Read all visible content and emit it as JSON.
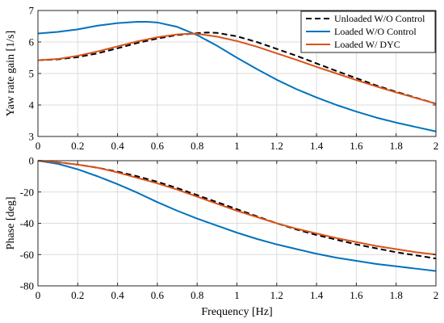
{
  "chart_data": [
    {
      "type": "line",
      "panel": "top",
      "xlabel": "",
      "ylabel": "Yaw rate gain [1/s]",
      "xlim": [
        0,
        2
      ],
      "ylim": [
        3,
        7
      ],
      "xticks": [
        0,
        0.2,
        0.4,
        0.6,
        0.8,
        1,
        1.2,
        1.4,
        1.6,
        1.8,
        2
      ],
      "xtick_labels": [
        "0",
        "0.2",
        "0.4",
        "0.6",
        "0.8",
        "1",
        "1.2",
        "1.4",
        "1.6",
        "1.8",
        "2"
      ],
      "yticks": [
        3,
        4,
        5,
        6,
        7
      ],
      "ytick_labels": [
        "3",
        "4",
        "5",
        "6",
        "7"
      ],
      "grid": true,
      "legend_position": "top-right",
      "series": [
        {
          "name": "Unloaded W/O Control",
          "color": "#000000",
          "dash": "dashed",
          "x": [
            0,
            0.1,
            0.2,
            0.3,
            0.4,
            0.5,
            0.6,
            0.7,
            0.8,
            0.85,
            0.9,
            1.0,
            1.1,
            1.2,
            1.3,
            1.4,
            1.5,
            1.6,
            1.7,
            1.8,
            1.9,
            2.0
          ],
          "y": [
            5.42,
            5.45,
            5.52,
            5.64,
            5.8,
            5.97,
            6.11,
            6.22,
            6.28,
            6.3,
            6.29,
            6.18,
            6.0,
            5.78,
            5.56,
            5.32,
            5.08,
            4.85,
            4.62,
            4.42,
            4.23,
            4.04
          ]
        },
        {
          "name": "Loaded W/O Control",
          "color": "#0072BD",
          "dash": "solid",
          "x": [
            0,
            0.1,
            0.2,
            0.3,
            0.4,
            0.5,
            0.55,
            0.6,
            0.7,
            0.8,
            0.9,
            1.0,
            1.1,
            1.2,
            1.3,
            1.4,
            1.5,
            1.6,
            1.7,
            1.8,
            1.9,
            2.0
          ],
          "y": [
            6.27,
            6.32,
            6.4,
            6.52,
            6.6,
            6.64,
            6.64,
            6.62,
            6.48,
            6.22,
            5.88,
            5.5,
            5.14,
            4.8,
            4.5,
            4.24,
            4.0,
            3.79,
            3.6,
            3.44,
            3.3,
            3.16
          ]
        },
        {
          "name": "Loaded W/ DYC",
          "color": "#D95319",
          "dash": "solid",
          "x": [
            0,
            0.1,
            0.2,
            0.3,
            0.4,
            0.5,
            0.6,
            0.7,
            0.75,
            0.8,
            0.9,
            1.0,
            1.1,
            1.2,
            1.3,
            1.4,
            1.5,
            1.6,
            1.7,
            1.8,
            1.9,
            2.0
          ],
          "y": [
            5.42,
            5.46,
            5.56,
            5.7,
            5.86,
            6.02,
            6.15,
            6.24,
            6.26,
            6.26,
            6.17,
            6.03,
            5.85,
            5.64,
            5.43,
            5.21,
            5.0,
            4.79,
            4.59,
            4.4,
            4.22,
            4.04
          ]
        }
      ]
    },
    {
      "type": "line",
      "panel": "bottom",
      "xlabel": "Frequency [Hz]",
      "ylabel": "Phase [deg]",
      "xlim": [
        0,
        2
      ],
      "ylim": [
        -80,
        0
      ],
      "xticks": [
        0,
        0.2,
        0.4,
        0.6,
        0.8,
        1,
        1.2,
        1.4,
        1.6,
        1.8,
        2
      ],
      "xtick_labels": [
        "0",
        "0.2",
        "0.4",
        "0.6",
        "0.8",
        "1",
        "1.2",
        "1.4",
        "1.6",
        "1.8",
        "2"
      ],
      "yticks": [
        -80,
        -60,
        -40,
        -20,
        0
      ],
      "ytick_labels": [
        "-80",
        "-60",
        "-40",
        "-20",
        "0"
      ],
      "grid": true,
      "series": [
        {
          "name": "Unloaded W/O Control",
          "color": "#000000",
          "dash": "dashed",
          "x": [
            0,
            0.1,
            0.2,
            0.3,
            0.4,
            0.5,
            0.6,
            0.7,
            0.8,
            0.9,
            1.0,
            1.1,
            1.2,
            1.3,
            1.4,
            1.5,
            1.6,
            1.7,
            1.8,
            1.9,
            2.0
          ],
          "y": [
            0,
            -1,
            -2.5,
            -4.5,
            -7,
            -10,
            -13.5,
            -17.5,
            -22,
            -26.5,
            -31,
            -35.5,
            -40,
            -44,
            -47.5,
            -50.5,
            -53.5,
            -56,
            -58.5,
            -60.5,
            -62.5
          ]
        },
        {
          "name": "Loaded W/O Control",
          "color": "#0072BD",
          "dash": "solid",
          "x": [
            0,
            0.1,
            0.2,
            0.3,
            0.4,
            0.5,
            0.6,
            0.7,
            0.8,
            0.9,
            1.0,
            1.1,
            1.2,
            1.3,
            1.4,
            1.5,
            1.6,
            1.7,
            1.8,
            1.9,
            2.0
          ],
          "y": [
            0,
            -2,
            -5.5,
            -10,
            -15,
            -20.5,
            -26.5,
            -32,
            -37,
            -41.5,
            -46,
            -50,
            -53.5,
            -56.5,
            -59.5,
            -62,
            -64,
            -66,
            -67.5,
            -69,
            -70.5
          ]
        },
        {
          "name": "Loaded W/ DYC",
          "color": "#D95319",
          "dash": "solid",
          "x": [
            0,
            0.1,
            0.2,
            0.3,
            0.4,
            0.5,
            0.6,
            0.7,
            0.8,
            0.9,
            1.0,
            1.1,
            1.2,
            1.3,
            1.4,
            1.5,
            1.6,
            1.7,
            1.8,
            1.9,
            2.0
          ],
          "y": [
            0,
            -1,
            -2.5,
            -4.5,
            -7.5,
            -11,
            -14.5,
            -18.5,
            -23,
            -27.5,
            -32,
            -36,
            -40,
            -43.5,
            -46.5,
            -49.5,
            -52,
            -54.5,
            -56.5,
            -58.5,
            -60
          ]
        }
      ]
    }
  ]
}
